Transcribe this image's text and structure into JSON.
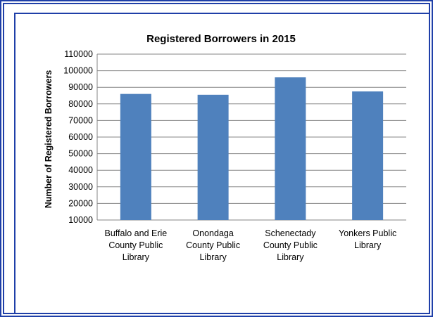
{
  "chart_data": {
    "type": "bar",
    "title": "Registered Borrowers in 2015",
    "xlabel": "",
    "ylabel": "Number of Registered Borrowers",
    "categories": [
      [
        "Buffalo and Erie",
        "County Public",
        "Library"
      ],
      [
        "Onondaga",
        "County Public",
        "Library"
      ],
      [
        "Schenectady",
        "County Public",
        "Library"
      ],
      [
        "Yonkers Public",
        "Library"
      ]
    ],
    "values": [
      86000,
      85500,
      96000,
      87500
    ],
    "ylim": [
      10000,
      110000
    ],
    "ytick_step": 10000,
    "grid": true,
    "legend": "none",
    "bar_color": "#4f81bd",
    "grid_color": "#868686",
    "frame_color": "#1f3fa8"
  }
}
